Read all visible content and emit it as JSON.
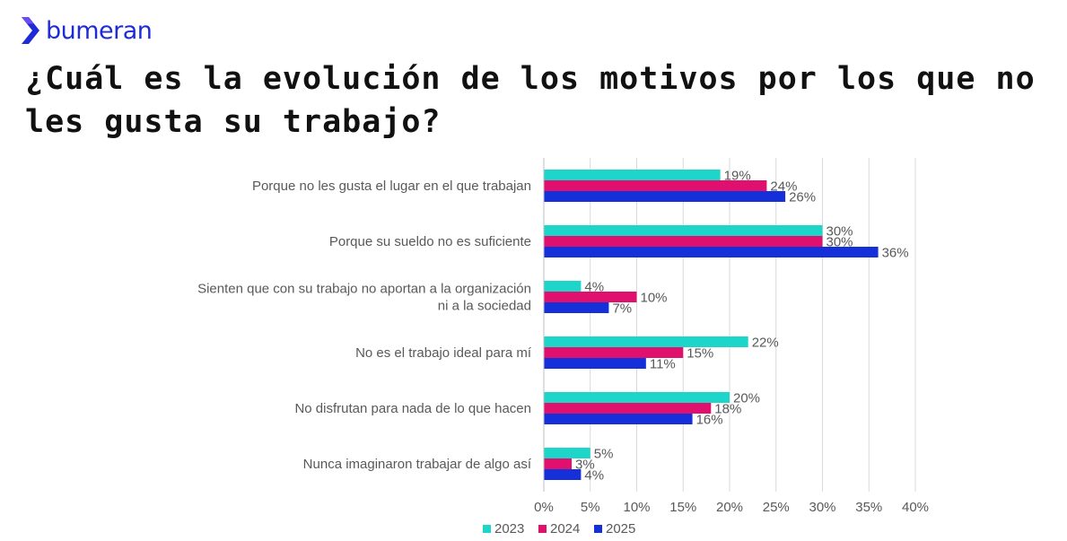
{
  "brand": {
    "name": "bumeran",
    "color": "#1f2bd6"
  },
  "title": "¿Cuál es la evolución de los motivos por los que no les gusta su trabajo?",
  "chart_data": {
    "type": "bar",
    "orientation": "horizontal",
    "categories": [
      "Porque no les gusta el lugar en el que trabajan",
      "Porque su sueldo no es suficiente",
      "Sienten que con su trabajo no aportan a la organización ni a la sociedad",
      "No es el trabajo ideal para mí",
      "No disfrutan para nada de lo que hacen",
      "Nunca imaginaron trabajar de algo así"
    ],
    "category_lines": [
      [
        "Porque no les gusta el lugar en el que trabajan"
      ],
      [
        "Porque su sueldo no es suficiente"
      ],
      [
        "Sienten que con su trabajo no aportan a la organización",
        "ni a la sociedad"
      ],
      [
        "No es el trabajo ideal para mí"
      ],
      [
        "No disfrutan para nada de lo que hacen"
      ],
      [
        "Nunca imaginaron trabajar de algo así"
      ]
    ],
    "series": [
      {
        "name": "2023",
        "color": "#1dd6c9",
        "values": [
          19,
          30,
          4,
          22,
          20,
          5
        ]
      },
      {
        "name": "2024",
        "color": "#e0106f",
        "values": [
          24,
          30,
          10,
          15,
          18,
          3
        ]
      },
      {
        "name": "2025",
        "color": "#1530d8",
        "values": [
          26,
          36,
          7,
          11,
          16,
          4
        ]
      }
    ],
    "xlim": [
      0,
      40
    ],
    "xticks": [
      0,
      5,
      10,
      15,
      20,
      25,
      30,
      35,
      40
    ],
    "tick_suffix": "%",
    "grid": true,
    "legend_position": "bottom"
  }
}
